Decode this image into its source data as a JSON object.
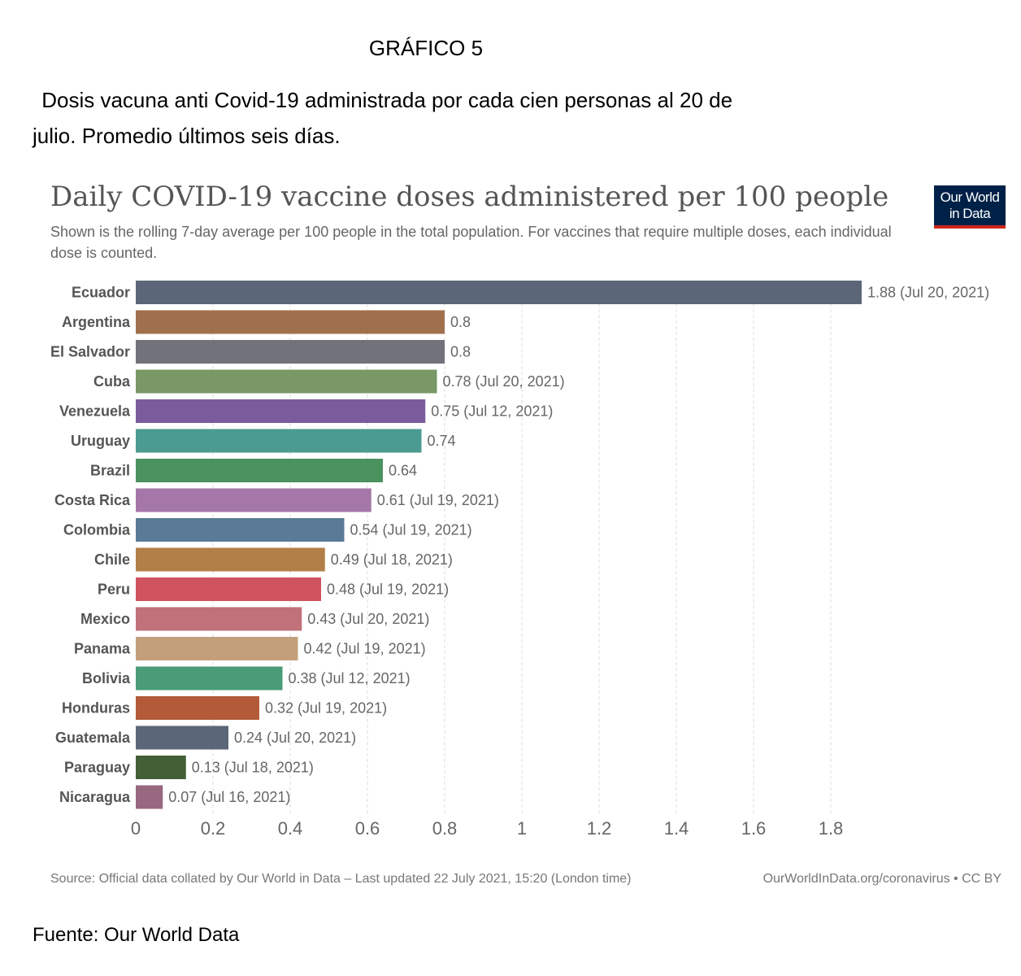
{
  "document": {
    "grafico_label": "GRÁFICO 5",
    "title_line1": " Dosis vacuna anti Covid-19 administrada por cada cien personas al 20 de",
    "title_line2": "julio. Promedio últimos seis días.",
    "source_note": "Fuente: Our World Data"
  },
  "chart_header": {
    "title": "Daily COVID-19 vaccine doses administered per 100 people",
    "subtitle": "Shown is the rolling 7-day average per 100 people in the total population. For vaccines that require multiple doses, each individual dose is counted.",
    "logo_line1": "Our World",
    "logo_line2": "in Data"
  },
  "footer": {
    "source": "Source: Official data collated by Our World in Data – Last updated 22 July 2021, 15:20 (London time)",
    "license": "OurWorldInData.org/coronavirus • CC BY"
  },
  "colors": {
    "logo_background": "#002147",
    "logo_accent": "#ce261e",
    "gridline": "#dddddd"
  },
  "chart_data": {
    "type": "bar",
    "orientation": "horizontal",
    "title": "Daily COVID-19 vaccine doses administered per 100 people",
    "xlim": [
      0,
      1.9
    ],
    "xticks": [
      "0",
      "0.2",
      "0.4",
      "0.6",
      "0.8",
      "1",
      "1.2",
      "1.4",
      "1.6",
      "1.8"
    ],
    "xtick_values": [
      0,
      0.2,
      0.4,
      0.6,
      0.8,
      1,
      1.2,
      1.4,
      1.6,
      1.8
    ],
    "grid": "vertical dashed",
    "bars": [
      {
        "category": "Ecuador",
        "value": 1.88,
        "label": "1.88 (Jul 20, 2021)",
        "color": "#5b6779"
      },
      {
        "category": "Argentina",
        "value": 0.8,
        "label": "0.8",
        "color": "#a0704d"
      },
      {
        "category": "El Salvador",
        "value": 0.8,
        "label": "0.8",
        "color": "#71727a"
      },
      {
        "category": "Cuba",
        "value": 0.78,
        "label": "0.78 (Jul 20, 2021)",
        "color": "#7a9766"
      },
      {
        "category": "Venezuela",
        "value": 0.75,
        "label": "0.75 (Jul 12, 2021)",
        "color": "#7a5c9c"
      },
      {
        "category": "Uruguay",
        "value": 0.74,
        "label": "0.74",
        "color": "#4b9b92"
      },
      {
        "category": "Brazil",
        "value": 0.64,
        "label": "0.64",
        "color": "#4a925e"
      },
      {
        "category": "Costa Rica",
        "value": 0.61,
        "label": "0.61 (Jul 19, 2021)",
        "color": "#a577a8"
      },
      {
        "category": "Colombia",
        "value": 0.54,
        "label": "0.54 (Jul 19, 2021)",
        "color": "#5a7a97"
      },
      {
        "category": "Chile",
        "value": 0.49,
        "label": "0.49 (Jul 18, 2021)",
        "color": "#b37f48"
      },
      {
        "category": "Peru",
        "value": 0.48,
        "label": "0.48 (Jul 19, 2021)",
        "color": "#cf5460"
      },
      {
        "category": "Mexico",
        "value": 0.43,
        "label": "0.43 (Jul 20, 2021)",
        "color": "#c0717a"
      },
      {
        "category": "Panama",
        "value": 0.42,
        "label": "0.42 (Jul 19, 2021)",
        "color": "#c3a07b"
      },
      {
        "category": "Bolivia",
        "value": 0.38,
        "label": "0.38 (Jul 12, 2021)",
        "color": "#4a9b78"
      },
      {
        "category": "Honduras",
        "value": 0.32,
        "label": "0.32 (Jul 19, 2021)",
        "color": "#b35a38"
      },
      {
        "category": "Guatemala",
        "value": 0.24,
        "label": "0.24 (Jul 20, 2021)",
        "color": "#5b6779"
      },
      {
        "category": "Paraguay",
        "value": 0.13,
        "label": "0.13 (Jul 18, 2021)",
        "color": "#445e35"
      },
      {
        "category": "Nicaragua",
        "value": 0.07,
        "label": "0.07 (Jul 16, 2021)",
        "color": "#986881"
      }
    ]
  }
}
